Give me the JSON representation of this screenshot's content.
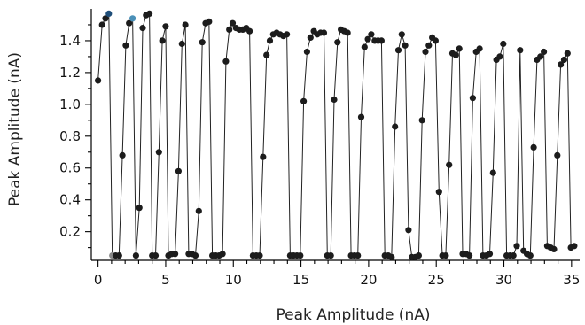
{
  "chart_data": {
    "type": "line",
    "title": "",
    "xlabel": "Peak Amplitude (nA)",
    "ylabel": "Peak Amplitude (nA)",
    "xlim": [
      -0.5,
      35.6
    ],
    "ylim": [
      0.02,
      1.6
    ],
    "x_ticks": [
      0,
      5,
      10,
      15,
      20,
      25,
      30,
      35
    ],
    "x_tick_labels": [
      "0",
      "5",
      "10",
      "15",
      "20",
      "25",
      "30",
      "35"
    ],
    "y_ticks": [
      0.2,
      0.4,
      0.6,
      0.8,
      1.0,
      1.2,
      1.4
    ],
    "y_tick_labels": [
      "0.2",
      "0.4",
      "0.6",
      "0.8",
      "1.0",
      "1.2",
      "1.4"
    ],
    "grid": false,
    "legend": "none",
    "line_color": "#222222",
    "marker_color": "#1c1c1c",
    "highlight_colors": {
      "dark_blue": "#1f4e79",
      "light_blue": "#4a90b8",
      "gray": "#888888"
    },
    "series": [
      {
        "x": [
          0.0,
          0.3,
          0.55,
          0.8,
          1.05,
          1.3,
          1.55,
          1.8,
          2.05,
          2.3,
          2.55,
          2.8,
          3.05,
          3.3,
          3.55,
          3.8,
          4.0,
          4.25,
          4.5,
          4.75,
          5.0,
          5.2,
          5.45,
          5.7,
          5.95,
          6.2,
          6.45,
          6.7,
          6.95,
          7.2,
          7.45,
          7.7,
          7.95,
          8.2,
          8.45,
          8.7,
          8.95,
          9.2,
          9.45,
          9.7,
          9.95,
          10.2,
          10.45,
          10.7,
          10.95,
          11.2,
          11.45,
          11.7,
          11.95,
          12.2,
          12.45,
          12.7,
          12.95,
          13.2,
          13.45,
          13.7,
          13.95,
          14.2,
          14.45,
          14.7,
          14.95,
          15.2,
          15.45,
          15.7,
          15.95,
          16.2,
          16.45,
          16.7,
          16.95,
          17.2,
          17.45,
          17.7,
          17.95,
          18.2,
          18.45,
          18.7,
          18.95,
          19.2,
          19.45,
          19.7,
          19.95,
          20.2,
          20.45,
          20.7,
          20.95,
          21.2,
          21.45,
          21.7,
          21.95,
          22.2,
          22.45,
          22.7,
          22.95,
          23.2,
          23.45,
          23.7,
          23.95,
          24.2,
          24.45,
          24.7,
          24.95,
          25.2,
          25.45,
          25.7,
          25.95,
          26.2,
          26.45,
          26.7,
          26.95,
          27.2,
          27.45,
          27.7,
          27.95,
          28.2,
          28.45,
          28.7,
          28.95,
          29.2,
          29.45,
          29.7,
          29.95,
          30.2,
          30.45,
          30.7,
          30.95,
          31.2,
          31.45,
          31.7,
          31.95,
          32.2,
          32.45,
          32.7,
          32.95,
          33.2,
          33.45,
          33.7,
          33.95,
          34.2,
          34.45,
          34.7,
          34.95,
          35.2
        ],
        "y": [
          1.15,
          1.5,
          1.54,
          1.57,
          0.05,
          0.05,
          0.05,
          0.68,
          1.37,
          1.51,
          1.54,
          0.05,
          0.35,
          1.48,
          1.56,
          1.57,
          0.05,
          0.05,
          0.7,
          1.4,
          1.49,
          0.05,
          0.06,
          0.06,
          0.58,
          1.38,
          1.5,
          0.06,
          0.06,
          0.05,
          0.33,
          1.39,
          1.51,
          1.52,
          0.05,
          0.05,
          0.05,
          0.06,
          1.27,
          1.47,
          1.51,
          1.48,
          1.47,
          1.47,
          1.48,
          1.46,
          0.05,
          0.05,
          0.05,
          0.67,
          1.31,
          1.4,
          1.44,
          1.45,
          1.44,
          1.43,
          1.44,
          0.05,
          0.05,
          0.05,
          0.05,
          1.02,
          1.33,
          1.42,
          1.46,
          1.44,
          1.45,
          1.45,
          0.05,
          0.05,
          1.03,
          1.39,
          1.47,
          1.46,
          1.45,
          0.05,
          0.05,
          0.05,
          0.92,
          1.36,
          1.41,
          1.44,
          1.4,
          1.4,
          1.4,
          0.05,
          0.05,
          0.04,
          0.86,
          1.34,
          1.44,
          1.37,
          0.21,
          0.04,
          0.04,
          0.05,
          0.9,
          1.33,
          1.37,
          1.42,
          1.4,
          0.45,
          0.05,
          0.05,
          0.62,
          1.32,
          1.31,
          1.35,
          0.06,
          0.06,
          0.05,
          1.04,
          1.33,
          1.35,
          0.05,
          0.05,
          0.06,
          0.57,
          1.28,
          1.3,
          1.38,
          0.05,
          0.05,
          0.05,
          0.11,
          1.34,
          0.08,
          0.06,
          0.05,
          0.73,
          1.28,
          1.3,
          1.33,
          0.11,
          0.1,
          0.09,
          0.68,
          1.25,
          1.28,
          1.32,
          0.1,
          0.11
        ],
        "highlights": [
          {
            "index": 3,
            "color": "dark_blue"
          },
          {
            "index": 10,
            "color": "light_blue"
          },
          {
            "index": 4,
            "color": "gray"
          }
        ]
      }
    ]
  }
}
